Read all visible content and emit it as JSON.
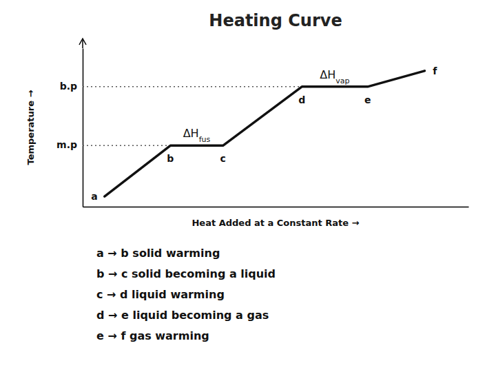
{
  "chart_data": {
    "type": "line",
    "title": "Heating Curve",
    "x_label": "Heat Added at a Constant Rate →",
    "y_label": "Temperature →",
    "x": [
      0.5,
      2.0,
      3.2,
      5.0,
      6.5,
      7.8
    ],
    "series": [
      {
        "values": [
          0.45,
          2.7,
          2.7,
          5.3,
          5.3,
          6.0
        ],
        "color": "#111111",
        "point_labels": [
          "a",
          "b",
          "c",
          "d",
          "e",
          "f"
        ]
      }
    ],
    "xlim": [
      0.0,
      8.8
    ],
    "ylim": [
      0.0,
      7.0
    ],
    "tick_labels": false,
    "grid": false,
    "annotations": [
      {
        "text": "m.p",
        "y": 2.7,
        "x": 2.0,
        "line_style": "dotted"
      },
      {
        "text": "b.p",
        "y": 5.3,
        "x": 5.0,
        "line_style": "dotted"
      },
      {
        "text": "ΔHfus",
        "x": 2.6,
        "y": 2.7
      },
      {
        "text": "ΔHvap",
        "x": 5.75,
        "y": 5.3
      }
    ],
    "notes": [
      "a → b  solid warming",
      "b → c  solid becoming a liquid",
      "c → d  liquid warming",
      "d → e  liquid becoming a gas",
      "e → f  gas warming"
    ]
  }
}
